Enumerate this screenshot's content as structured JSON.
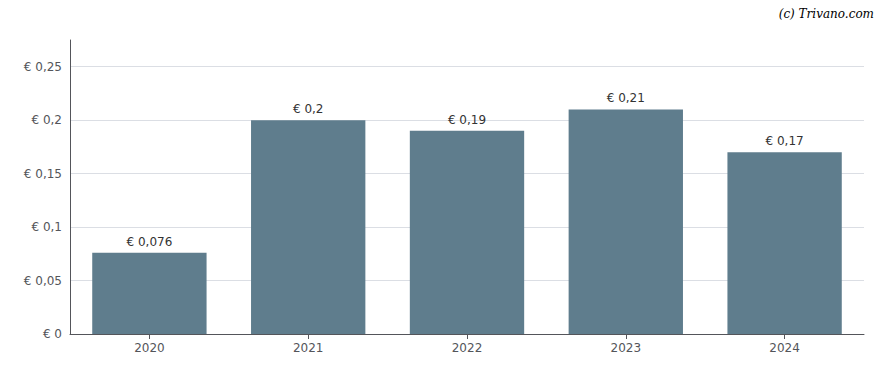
{
  "chart_data": {
    "type": "bar",
    "categories": [
      "2020",
      "2021",
      "2022",
      "2023",
      "2024"
    ],
    "values": [
      0.076,
      0.2,
      0.19,
      0.21,
      0.17
    ],
    "value_labels": [
      "€ 0,076",
      "€ 0,2",
      "€ 0,19",
      "€ 0,21",
      "€ 0,17"
    ],
    "data_labels": true,
    "color": "#5f7d8d",
    "ylim": [
      0,
      0.275
    ],
    "yticks": [
      {
        "value": 0,
        "label": "€ 0"
      },
      {
        "value": 0.05,
        "label": "€ 0,05"
      },
      {
        "value": 0.1,
        "label": "€ 0,1"
      },
      {
        "value": 0.15,
        "label": "€ 0,15"
      },
      {
        "value": 0.2,
        "label": "€ 0,2"
      },
      {
        "value": 0.25,
        "label": "€ 0,25"
      }
    ],
    "grid": true,
    "annotation": "(c) Trivano.com"
  }
}
